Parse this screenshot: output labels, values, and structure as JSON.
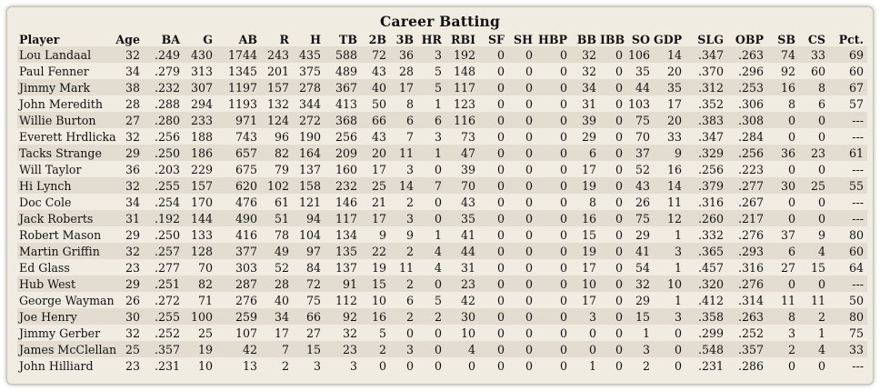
{
  "title": "Career Batting",
  "columns": [
    "Player",
    "Age",
    "BA",
    "G",
    "AB",
    "R",
    "H",
    "TB",
    "2B",
    "3B",
    "HR",
    "RBI",
    "SF",
    "SH",
    "HBP",
    "BB",
    "IBB",
    "SO",
    "GDP",
    "SLG",
    "OBP",
    "SB",
    "CS",
    "Pct."
  ],
  "rows": [
    [
      "Lou Landaal",
      "32",
      ".249",
      "430",
      "1744",
      "243",
      "435",
      "588",
      "72",
      "36",
      "3",
      "192",
      "0",
      "0",
      "0",
      "32",
      "0",
      "106",
      "14",
      ".347",
      ".263",
      "74",
      "33",
      "69"
    ],
    [
      "Paul Fenner",
      "34",
      ".279",
      "313",
      "1345",
      "201",
      "375",
      "489",
      "43",
      "28",
      "5",
      "148",
      "0",
      "0",
      "0",
      "32",
      "0",
      "35",
      "20",
      ".370",
      ".296",
      "92",
      "60",
      "60"
    ],
    [
      "Jimmy Mark",
      "38",
      ".232",
      "307",
      "1197",
      "157",
      "278",
      "367",
      "40",
      "17",
      "5",
      "117",
      "0",
      "0",
      "0",
      "34",
      "0",
      "44",
      "35",
      ".312",
      ".253",
      "16",
      "8",
      "67"
    ],
    [
      "John Meredith",
      "28",
      ".288",
      "294",
      "1193",
      "132",
      "344",
      "413",
      "50",
      "8",
      "1",
      "123",
      "0",
      "0",
      "0",
      "31",
      "0",
      "103",
      "17",
      ".352",
      ".306",
      "8",
      "6",
      "57"
    ],
    [
      "Willie Burton",
      "27",
      ".280",
      "233",
      "971",
      "124",
      "272",
      "368",
      "66",
      "6",
      "6",
      "116",
      "0",
      "0",
      "0",
      "39",
      "0",
      "75",
      "20",
      ".383",
      ".308",
      "0",
      "0",
      "---"
    ],
    [
      "Everett Hrdlicka",
      "32",
      ".256",
      "188",
      "743",
      "96",
      "190",
      "256",
      "43",
      "7",
      "3",
      "73",
      "0",
      "0",
      "0",
      "29",
      "0",
      "70",
      "33",
      ".347",
      ".284",
      "0",
      "0",
      "---"
    ],
    [
      "Tacks Strange",
      "29",
      ".250",
      "186",
      "657",
      "82",
      "164",
      "209",
      "20",
      "11",
      "1",
      "47",
      "0",
      "0",
      "0",
      "6",
      "0",
      "37",
      "9",
      ".329",
      ".256",
      "36",
      "23",
      "61"
    ],
    [
      "Will Taylor",
      "36",
      ".203",
      "229",
      "675",
      "79",
      "137",
      "160",
      "17",
      "3",
      "0",
      "39",
      "0",
      "0",
      "0",
      "17",
      "0",
      "52",
      "16",
      ".256",
      ".223",
      "0",
      "0",
      "---"
    ],
    [
      "Hi Lynch",
      "32",
      ".255",
      "157",
      "620",
      "102",
      "158",
      "232",
      "25",
      "14",
      "7",
      "70",
      "0",
      "0",
      "0",
      "19",
      "0",
      "43",
      "14",
      ".379",
      ".277",
      "30",
      "25",
      "55"
    ],
    [
      "Doc Cole",
      "34",
      ".254",
      "170",
      "476",
      "61",
      "121",
      "146",
      "21",
      "2",
      "0",
      "43",
      "0",
      "0",
      "0",
      "8",
      "0",
      "26",
      "11",
      ".316",
      ".267",
      "0",
      "0",
      "---"
    ],
    [
      "Jack Roberts",
      "31",
      ".192",
      "144",
      "490",
      "51",
      "94",
      "117",
      "17",
      "3",
      "0",
      "35",
      "0",
      "0",
      "0",
      "16",
      "0",
      "75",
      "12",
      ".260",
      ".217",
      "0",
      "0",
      "---"
    ],
    [
      "Robert Mason",
      "29",
      ".250",
      "133",
      "416",
      "78",
      "104",
      "134",
      "9",
      "9",
      "1",
      "41",
      "0",
      "0",
      "0",
      "15",
      "0",
      "29",
      "1",
      ".332",
      ".276",
      "37",
      "9",
      "80"
    ],
    [
      "Martin Griffin",
      "32",
      ".257",
      "128",
      "377",
      "49",
      "97",
      "135",
      "22",
      "2",
      "4",
      "44",
      "0",
      "0",
      "0",
      "19",
      "0",
      "41",
      "3",
      ".365",
      ".293",
      "6",
      "4",
      "60"
    ],
    [
      "Ed Glass",
      "23",
      ".277",
      "70",
      "303",
      "52",
      "84",
      "137",
      "19",
      "11",
      "4",
      "31",
      "0",
      "0",
      "0",
      "17",
      "0",
      "54",
      "1",
      ".457",
      ".316",
      "27",
      "15",
      "64"
    ],
    [
      "Hub West",
      "29",
      ".251",
      "82",
      "287",
      "28",
      "72",
      "91",
      "15",
      "2",
      "0",
      "23",
      "0",
      "0",
      "0",
      "10",
      "0",
      "32",
      "10",
      ".320",
      ".276",
      "0",
      "0",
      "---"
    ],
    [
      "George Wayman",
      "26",
      ".272",
      "71",
      "276",
      "40",
      "75",
      "112",
      "10",
      "6",
      "5",
      "42",
      "0",
      "0",
      "0",
      "17",
      "0",
      "29",
      "1",
      ".412",
      ".314",
      "11",
      "11",
      "50"
    ],
    [
      "Joe Henry",
      "30",
      ".255",
      "100",
      "259",
      "34",
      "66",
      "92",
      "16",
      "2",
      "2",
      "30",
      "0",
      "0",
      "0",
      "3",
      "0",
      "15",
      "3",
      ".358",
      ".263",
      "8",
      "2",
      "80"
    ],
    [
      "Jimmy Gerber",
      "32",
      ".252",
      "25",
      "107",
      "17",
      "27",
      "32",
      "5",
      "0",
      "0",
      "10",
      "0",
      "0",
      "0",
      "0",
      "0",
      "1",
      "0",
      ".299",
      ".252",
      "3",
      "1",
      "75"
    ],
    [
      "James McClellan",
      "25",
      ".357",
      "19",
      "42",
      "7",
      "15",
      "23",
      "2",
      "3",
      "0",
      "4",
      "0",
      "0",
      "0",
      "0",
      "0",
      "3",
      "0",
      ".548",
      ".357",
      "2",
      "4",
      "33"
    ],
    [
      "John Hilliard",
      "23",
      ".231",
      "10",
      "13",
      "2",
      "3",
      "3",
      "0",
      "0",
      "0",
      "0",
      "0",
      "0",
      "0",
      "1",
      "0",
      "2",
      "0",
      ".231",
      ".286",
      "0",
      "0",
      "---"
    ]
  ]
}
